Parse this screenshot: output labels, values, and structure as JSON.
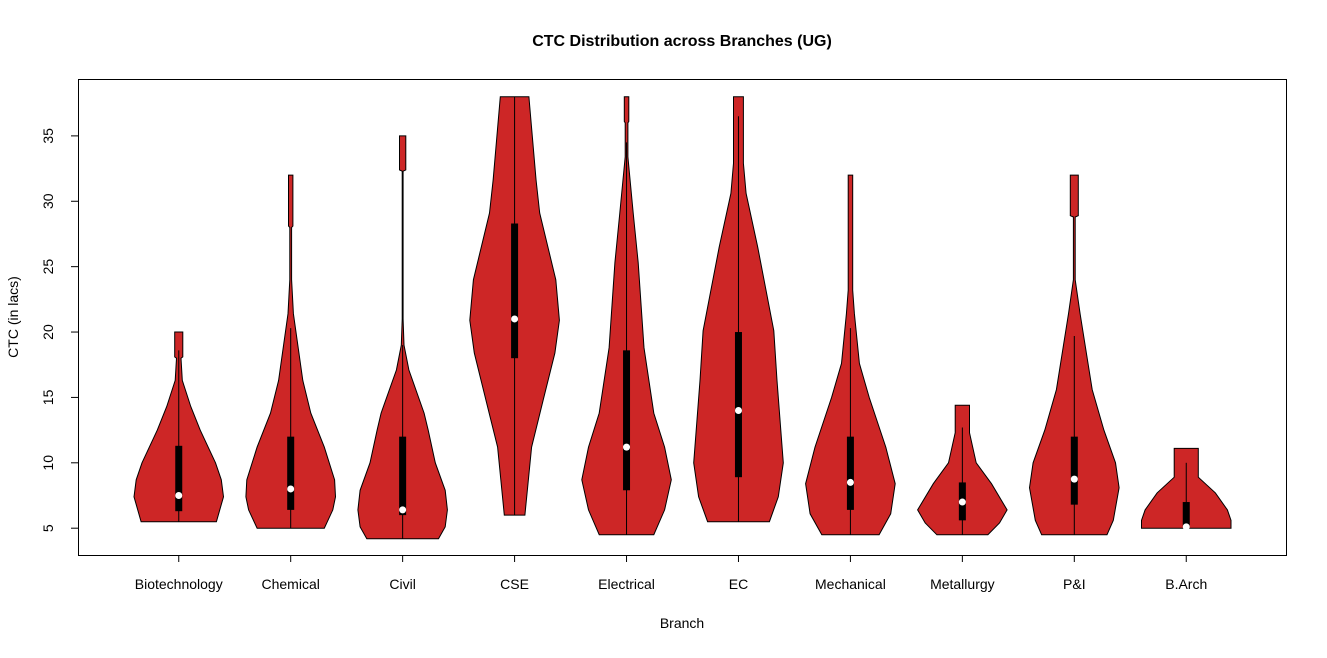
{
  "chart_data": {
    "type": "violin",
    "title": "CTC Distribution across Branches (UG)",
    "xlabel": "Branch",
    "ylabel": "CTC (in lacs)",
    "ylim": [
      2.95,
      39.35
    ],
    "yticks": [
      5,
      10,
      15,
      20,
      25,
      30,
      35
    ],
    "grid": false,
    "fill_color": "#CD2626",
    "box_color": "#000000",
    "median_color": "#FFFFFF",
    "categories": [
      "Biotechnology",
      "Chemical",
      "Civil",
      "CSE",
      "Electrical",
      "EC",
      "Mechanical",
      "Metallurgy",
      "P&I",
      "B.Arch"
    ],
    "violins": [
      {
        "name": "Biotechnology",
        "min": 5.5,
        "max": 20,
        "q1": 6.3,
        "median": 7.5,
        "q3": 11.3,
        "whisker_top": 18.6,
        "density": [
          [
            5.5,
            0.84
          ],
          [
            7.4,
            1
          ],
          [
            8.7,
            0.95
          ],
          [
            10,
            0.82
          ],
          [
            12.5,
            0.48
          ],
          [
            14.3,
            0.27
          ],
          [
            16.3,
            0.08
          ],
          [
            18,
            0.05
          ],
          [
            18.1,
            0.09
          ],
          [
            20,
            0.09
          ]
        ]
      },
      {
        "name": "Chemical",
        "min": 5.0,
        "max": 32,
        "q1": 6.4,
        "median": 8.0,
        "q3": 12.0,
        "whisker_top": 20.3,
        "density": [
          [
            5.0,
            0.75
          ],
          [
            6.4,
            0.94
          ],
          [
            7.4,
            1
          ],
          [
            8.7,
            0.98
          ],
          [
            11.2,
            0.75
          ],
          [
            13.8,
            0.45
          ],
          [
            16.3,
            0.27
          ],
          [
            21.4,
            0.06
          ],
          [
            24,
            0.02
          ],
          [
            28,
            0.02
          ],
          [
            28.1,
            0.05
          ],
          [
            32,
            0.05
          ]
        ]
      },
      {
        "name": "Civil",
        "min": 4.2,
        "max": 35,
        "q1": 6.0,
        "median": 6.4,
        "q3": 12.0,
        "whisker_top": 19.0,
        "density": [
          [
            4.2,
            0.8
          ],
          [
            5.1,
            0.95
          ],
          [
            6.4,
            1
          ],
          [
            7.9,
            0.95
          ],
          [
            10,
            0.73
          ],
          [
            12.5,
            0.57
          ],
          [
            13.8,
            0.48
          ],
          [
            17.1,
            0.14
          ],
          [
            19,
            0.03
          ],
          [
            21,
            0.01
          ],
          [
            32.3,
            0.01
          ],
          [
            32.4,
            0.07
          ],
          [
            35,
            0.07
          ]
        ]
      },
      {
        "name": "CSE",
        "min": 6.0,
        "max": 38,
        "q1": 18.0,
        "median": 21.0,
        "q3": 28.3,
        "whisker_top": 38,
        "density": [
          [
            6.0,
            0.23
          ],
          [
            7.4,
            0.27
          ],
          [
            11.2,
            0.38
          ],
          [
            14.8,
            0.64
          ],
          [
            18.4,
            0.9
          ],
          [
            20.9,
            1
          ],
          [
            24,
            0.92
          ],
          [
            29.1,
            0.56
          ],
          [
            31.6,
            0.48
          ],
          [
            38,
            0.32
          ]
        ]
      },
      {
        "name": "Electrical",
        "min": 4.5,
        "max": 38,
        "q1": 7.9,
        "median": 11.2,
        "q3": 18.6,
        "whisker_top": 34.5,
        "density": [
          [
            4.5,
            0.61
          ],
          [
            6.4,
            0.85
          ],
          [
            8.7,
            1
          ],
          [
            11.2,
            0.85
          ],
          [
            13.8,
            0.61
          ],
          [
            18.8,
            0.39
          ],
          [
            25.3,
            0.26
          ],
          [
            29.1,
            0.15
          ],
          [
            33.4,
            0.03
          ],
          [
            36,
            0.03
          ],
          [
            36.1,
            0.05
          ],
          [
            38,
            0.05
          ]
        ]
      },
      {
        "name": "EC",
        "min": 5.5,
        "max": 38,
        "q1": 8.9,
        "median": 14.0,
        "q3": 20.0,
        "whisker_top": 36.5,
        "density": [
          [
            5.5,
            0.69
          ],
          [
            7.4,
            0.89
          ],
          [
            10,
            1
          ],
          [
            16.3,
            0.86
          ],
          [
            20.1,
            0.79
          ],
          [
            26.5,
            0.43
          ],
          [
            30.6,
            0.17
          ],
          [
            32.9,
            0.11
          ],
          [
            38,
            0.11
          ]
        ]
      },
      {
        "name": "Mechanical",
        "min": 4.5,
        "max": 32,
        "q1": 6.4,
        "median": 8.5,
        "q3": 12.0,
        "whisker_top": 20.3,
        "density": [
          [
            4.5,
            0.64
          ],
          [
            6.1,
            0.9
          ],
          [
            8.4,
            1
          ],
          [
            11.2,
            0.79
          ],
          [
            15,
            0.42
          ],
          [
            17.6,
            0.2
          ],
          [
            21.4,
            0.09
          ],
          [
            23.2,
            0.05
          ],
          [
            32,
            0.05
          ]
        ]
      },
      {
        "name": "Metallurgy",
        "min": 4.5,
        "max": 14.4,
        "q1": 5.6,
        "median": 7.0,
        "q3": 8.5,
        "whisker_top": 12.7,
        "density": [
          [
            4.5,
            0.57
          ],
          [
            5.4,
            0.83
          ],
          [
            6.4,
            1
          ],
          [
            8.4,
            0.65
          ],
          [
            10,
            0.31
          ],
          [
            12.3,
            0.16
          ],
          [
            14.4,
            0.16
          ]
        ]
      },
      {
        "name": "P&I",
        "min": 4.5,
        "max": 32,
        "q1": 6.8,
        "median": 8.75,
        "q3": 12.0,
        "whisker_top": 19.7,
        "density": [
          [
            4.5,
            0.73
          ],
          [
            5.6,
            0.87
          ],
          [
            8.1,
            1
          ],
          [
            10,
            0.92
          ],
          [
            12.5,
            0.66
          ],
          [
            15.6,
            0.4
          ],
          [
            21.4,
            0.13
          ],
          [
            24,
            0.02
          ],
          [
            28.8,
            0.02
          ],
          [
            28.9,
            0.09
          ],
          [
            32,
            0.09
          ]
        ]
      },
      {
        "name": "B.Arch",
        "min": 5.0,
        "max": 11.1,
        "q1": 5.1,
        "median": 5.1,
        "q3": 7.0,
        "whisker_top": 10.0,
        "density": [
          [
            5.0,
            1
          ],
          [
            5.6,
            1
          ],
          [
            6.4,
            0.92
          ],
          [
            7.7,
            0.65
          ],
          [
            8.9,
            0.27
          ],
          [
            11.1,
            0.27
          ]
        ]
      }
    ]
  }
}
